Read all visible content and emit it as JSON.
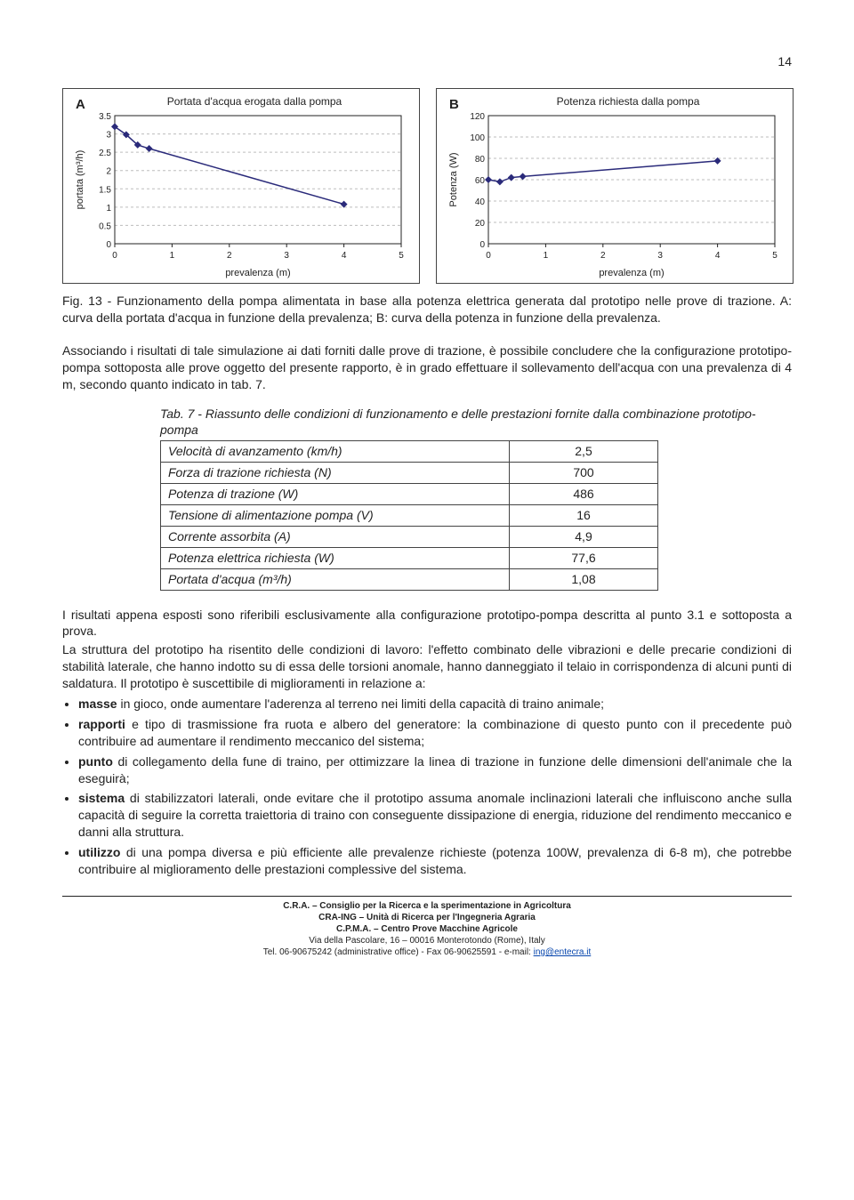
{
  "page_number": "14",
  "chartA": {
    "label": "A",
    "title": "Portata d'acqua erogata dalla pompa",
    "ylabel": "portata (m³/h)",
    "xlabel": "prevalenza (m)",
    "x": [
      0,
      1,
      2,
      3,
      4,
      5
    ],
    "yticks": [
      0.0,
      0.5,
      1.0,
      1.5,
      2.0,
      2.5,
      3.0,
      3.5
    ],
    "points": [
      [
        0,
        3.2
      ],
      [
        0.2,
        2.98
      ],
      [
        0.4,
        2.7
      ],
      [
        0.6,
        2.6
      ],
      [
        4,
        1.08
      ]
    ],
    "marker_color": "#2a2a7a",
    "line_color": "#2a2a7a",
    "grid_color": "#bdbdbd",
    "bg": "#ffffff"
  },
  "chartB": {
    "label": "B",
    "title": "Potenza richiesta dalla pompa",
    "ylabel": "Potenza (W)",
    "xlabel": "prevalenza (m)",
    "x": [
      0,
      1,
      2,
      3,
      4,
      5
    ],
    "yticks": [
      0,
      20,
      40,
      60,
      80,
      100,
      120
    ],
    "points": [
      [
        0,
        60
      ],
      [
        0.2,
        58
      ],
      [
        0.4,
        62
      ],
      [
        0.6,
        63
      ],
      [
        4,
        77.6
      ]
    ],
    "marker_color": "#2a2a7a",
    "line_color": "#2a2a7a",
    "grid_color": "#bdbdbd",
    "bg": "#ffffff"
  },
  "fig_caption": "Fig. 13 - Funzionamento della pompa alimentata in base alla potenza elettrica generata dal prototipo nelle prove di trazione. A: curva della portata d'acqua in funzione della prevalenza; B: curva della potenza in funzione della prevalenza.",
  "para1": "Associando i risultati di tale simulazione ai dati forniti dalle prove di trazione, è possibile concludere che la configurazione prototipo-pompa sottoposta alle prove oggetto del presente rapporto, è in grado effettuare il sollevamento dell'acqua con una prevalenza di 4 m, secondo quanto indicato in tab. 7.",
  "tab_caption": "Tab. 7 - Riassunto delle condizioni di funzionamento e delle prestazioni fornite dalla combinazione prototipo-pompa",
  "table": [
    [
      "Velocità di avanzamento (km/h)",
      "2,5"
    ],
    [
      "Forza di trazione richiesta (N)",
      "700"
    ],
    [
      "Potenza di trazione (W)",
      "486"
    ],
    [
      "Tensione di alimentazione pompa (V)",
      "16"
    ],
    [
      "Corrente assorbita (A)",
      "4,9"
    ],
    [
      "Potenza elettrica richiesta (W)",
      "77,6"
    ],
    [
      "Portata d'acqua (m³/h)",
      "1,08"
    ]
  ],
  "para2a": "I risultati appena esposti sono riferibili esclusivamente alla configurazione prototipo-pompa descritta al punto 3.1 e sottoposta a prova.",
  "para2b": "La struttura del prototipo ha risentito delle condizioni di lavoro: l'effetto combinato delle vibrazioni e delle precarie condizioni di stabilità laterale, che hanno indotto su di essa delle torsioni anomale, hanno danneggiato il telaio in corrispondenza di alcuni punti di saldatura. Il prototipo è suscettibile di miglioramenti in relazione a:",
  "bullets": [
    "masse in gioco, onde aumentare l'aderenza al terreno nei limiti della capacità di traino animale;",
    "rapporti e tipo di trasmissione fra ruota e albero del generatore: la combinazione di questo punto con il precedente può contribuire ad aumentare il rendimento meccanico del sistema;",
    "punto di collegamento della fune di traino, per ottimizzare la linea di trazione in funzione delle dimensioni dell'animale che la eseguirà;",
    "sistema di stabilizzatori laterali, onde evitare che il prototipo assuma anomale inclinazioni laterali che influiscono anche sulla capacità di seguire la corretta traiettoria di traino con conseguente dissipazione di energia, riduzione del rendimento meccanico e danni alla struttura.",
    "utilizzo di una pompa diversa e più efficiente alle prevalenze richieste (potenza 100W, prevalenza di 6-8 m), che potrebbe contribuire al miglioramento delle prestazioni complessive del sistema."
  ],
  "footer": {
    "l1": "C.R.A. – Consiglio per la Ricerca e la sperimentazione in Agricoltura",
    "l2": "CRA-ING – Unità di Ricerca per l'Ingegneria Agraria",
    "l3": "C.P.M.A. – Centro Prove Macchine Agricole",
    "l4": "Via della Pascolare, 16 – 00016 Monterotondo (Rome), Italy",
    "l5a": "Tel. 06-90675242 (administrative office) - Fax 06-90625591 - e-mail: ",
    "l5b": "ing@entecra.it"
  }
}
